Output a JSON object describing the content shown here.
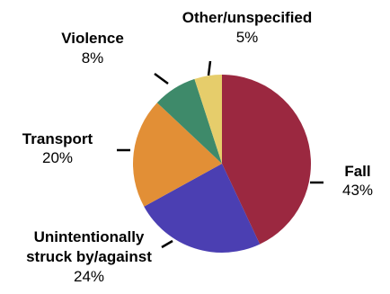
{
  "chart_data": {
    "type": "pie",
    "title": "",
    "legend": "none",
    "start_angle": "12 o'clock",
    "direction": "clockwise",
    "slices": [
      {
        "label_lines": [
          "Fall"
        ],
        "pct_text": "43%",
        "value": 43,
        "color": "#9b2840"
      },
      {
        "label_lines": [
          "Unintentionally",
          "struck by/against"
        ],
        "pct_text": "24%",
        "value": 24,
        "color": "#4b3fb2"
      },
      {
        "label_lines": [
          "Transport"
        ],
        "pct_text": "20%",
        "value": 20,
        "color": "#e28f36"
      },
      {
        "label_lines": [
          "Violence"
        ],
        "pct_text": "8%",
        "value": 8,
        "color": "#3e8a6a"
      },
      {
        "label_lines": [
          "Other/unspecified"
        ],
        "pct_text": "5%",
        "value": 5,
        "color": "#e6cd6b"
      }
    ]
  }
}
